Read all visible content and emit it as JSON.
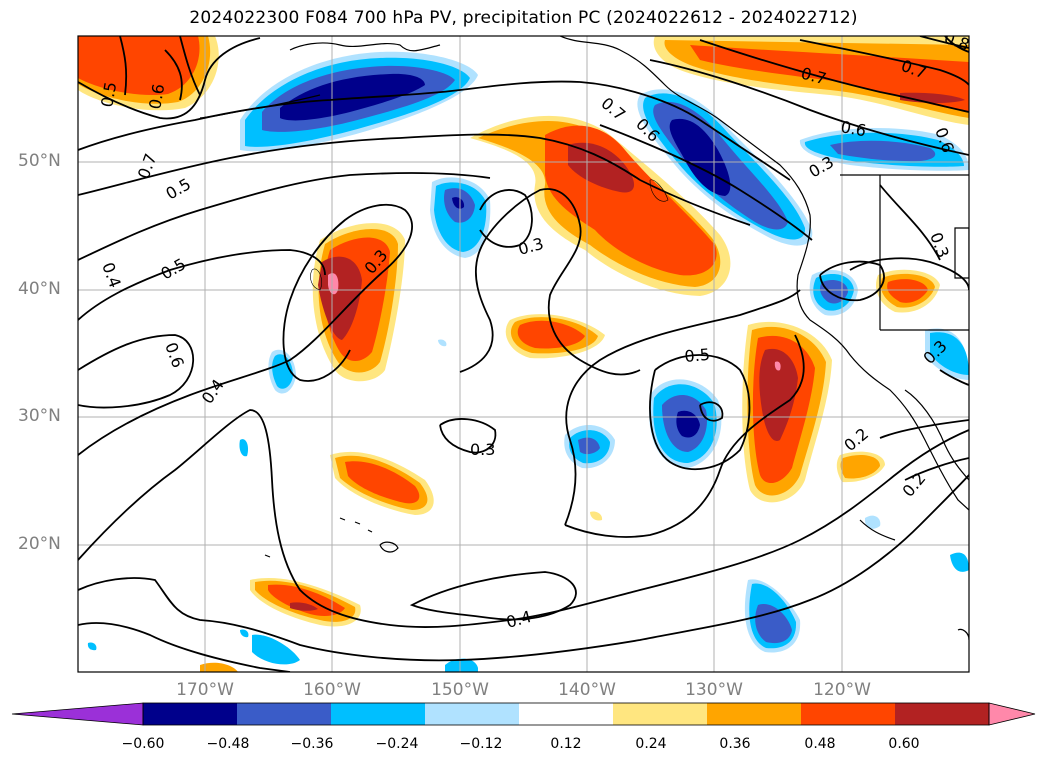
{
  "title": "2024022300 F084 700 hPa PV, precipitation PC (2024022612 - 2024022712)",
  "map": {
    "lat_labels": [
      "50°N",
      "40°N",
      "30°N",
      "20°N"
    ],
    "lon_labels": [
      "170°W",
      "160°W",
      "150°W",
      "140°W",
      "130°W",
      "120°W"
    ],
    "contour_labels": [
      "0.5",
      "0.6",
      "0.7",
      "0.5",
      "0.5",
      "0.4",
      "0.6",
      "0.4",
      "0.3",
      "0.3",
      "0.7",
      "0.6",
      "0.7",
      "0.6",
      "0.3",
      "0.5",
      "0.3",
      "0.4",
      "0.2",
      "0.2",
      "0.3",
      "0.7",
      "0.8",
      "0.6",
      "0.3"
    ]
  },
  "colorbar": {
    "ticks": [
      "−0.60",
      "−0.48",
      "−0.36",
      "−0.24",
      "−0.12",
      "0.12",
      "0.24",
      "0.36",
      "0.48",
      "0.60"
    ],
    "colors": [
      "#9b30d8",
      "#00008b",
      "#3a5cc8",
      "#00bfff",
      "#b0e2ff",
      "#ffffff",
      "#ffe680",
      "#ffa500",
      "#ff4500",
      "#b22222",
      "#ff88aa"
    ]
  }
}
